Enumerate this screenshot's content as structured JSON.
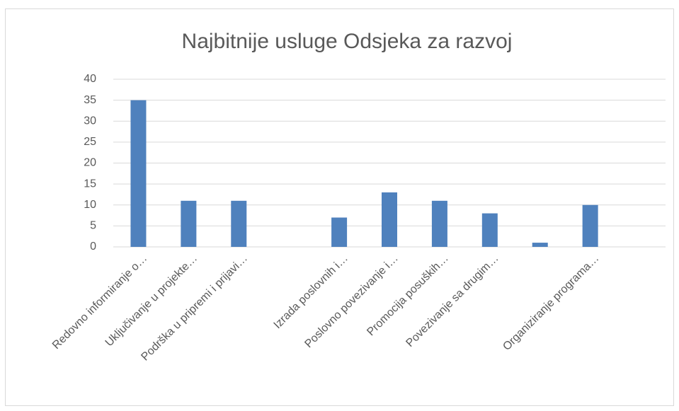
{
  "chart_data": {
    "type": "bar",
    "title": "Najbitnije usluge Odsjeka za razvoj",
    "categories": [
      "Redovno informiranje o…",
      "Uključivanje u projekte…",
      "Podrška u pripremi i prijavi…",
      null,
      "Izrada poslovnih i…",
      "Poslovno povezivanje i…",
      "Promocija posuških…",
      "Povezivanje sa drugim…",
      null,
      "Organiziranje programa…",
      null
    ],
    "values": [
      35,
      11,
      11,
      null,
      7,
      13,
      11,
      8,
      1,
      10,
      null
    ],
    "color": "#4f81bd",
    "ylim": [
      0,
      40
    ],
    "yticks": [
      0,
      5,
      10,
      15,
      20,
      25,
      30,
      35,
      40
    ],
    "grid": true
  }
}
